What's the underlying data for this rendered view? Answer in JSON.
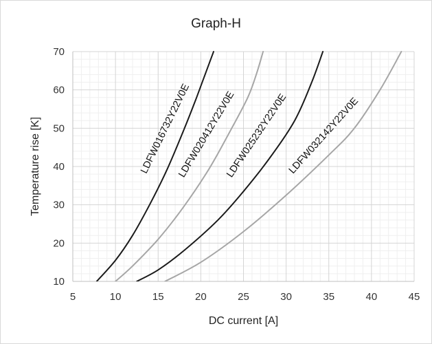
{
  "chart_data": {
    "type": "line",
    "title": "Graph-H",
    "xlabel": "DC current [A]",
    "ylabel": "Temperature rise [K]",
    "xlim": [
      5,
      45
    ],
    "ylim": [
      10,
      70
    ],
    "x_ticks": [
      "5",
      "10",
      "15",
      "20",
      "25",
      "30",
      "35",
      "40",
      "45"
    ],
    "y_ticks": [
      "10",
      "20",
      "30",
      "40",
      "50",
      "60",
      "70"
    ],
    "grid": true,
    "legend": "none",
    "series": [
      {
        "name": "LDFW016732Y22V0E",
        "color": "#1a1a1a",
        "x": [
          7.8,
          10,
          12,
          14,
          16,
          18,
          19.5,
          20.5,
          21.5
        ],
        "y": [
          10,
          15.5,
          22,
          30,
          39,
          49.5,
          58,
          64,
          70
        ]
      },
      {
        "name": "LDFW020412Y22V0E",
        "color": "#a6a6a6",
        "x": [
          10,
          12,
          15,
          18,
          21,
          23.5,
          25.5,
          26.5,
          27.3
        ],
        "y": [
          10,
          14,
          21,
          29.5,
          39.5,
          49.5,
          58,
          64,
          70
        ]
      },
      {
        "name": "LDFW025232Y22V0E",
        "color": "#1a1a1a",
        "x": [
          12.5,
          15,
          18,
          22,
          25,
          28,
          31,
          33,
          34.3
        ],
        "y": [
          10,
          13,
          18,
          26,
          33.5,
          42,
          52,
          62,
          70
        ]
      },
      {
        "name": "LDFW032142Y22V0E",
        "color": "#a6a6a6",
        "x": [
          15.8,
          20,
          25,
          30,
          35,
          38,
          41,
          43.5
        ],
        "y": [
          10,
          15,
          23,
          32.5,
          43,
          50,
          60,
          70
        ]
      }
    ]
  }
}
